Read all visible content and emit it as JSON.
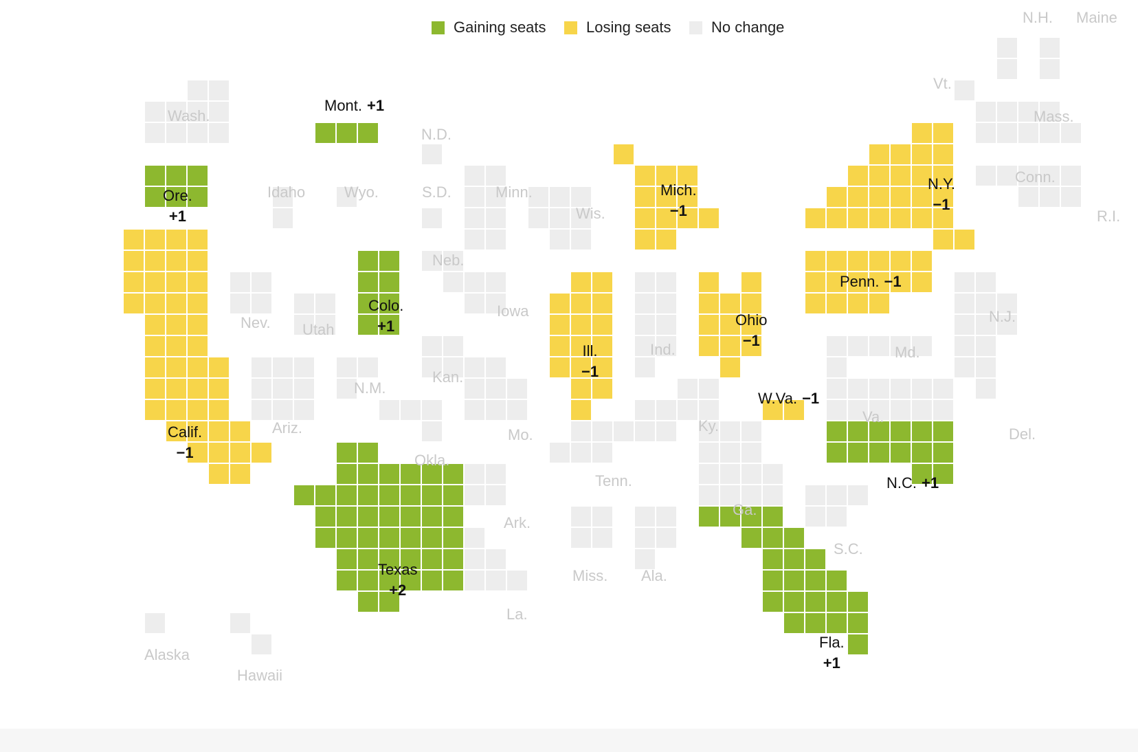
{
  "legend": [
    {
      "key": "gain",
      "label": "Gaining seats",
      "color": "#8db82f"
    },
    {
      "key": "lose",
      "label": "Losing seats",
      "color": "#f7d54a"
    },
    {
      "key": "none",
      "label": "No change",
      "color": "#ededed"
    }
  ],
  "states": [
    {
      "id": "wash",
      "name": "Wash.",
      "status": "none",
      "change": "",
      "seats": 10
    },
    {
      "id": "ore",
      "name": "Ore.",
      "status": "gain",
      "change": "+1",
      "seats": 6
    },
    {
      "id": "calif",
      "name": "Calif.",
      "status": "lose",
      "change": "−1",
      "seats": 52
    },
    {
      "id": "mont",
      "name": "Mont.",
      "status": "gain",
      "change": "+1",
      "seats": 2
    },
    {
      "id": "idaho",
      "name": "Idaho",
      "status": "none",
      "change": "",
      "seats": 2
    },
    {
      "id": "wyo",
      "name": "Wyo.",
      "status": "none",
      "change": "",
      "seats": 1
    },
    {
      "id": "nev",
      "name": "Nev.",
      "status": "none",
      "change": "",
      "seats": 4
    },
    {
      "id": "utah",
      "name": "Utah",
      "status": "none",
      "change": "",
      "seats": 4
    },
    {
      "id": "colo",
      "name": "Colo.",
      "status": "gain",
      "change": "+1",
      "seats": 8
    },
    {
      "id": "ariz",
      "name": "Ariz.",
      "status": "none",
      "change": "",
      "seats": 9
    },
    {
      "id": "nm",
      "name": "N.M.",
      "status": "none",
      "change": "",
      "seats": 3
    },
    {
      "id": "nd",
      "name": "N.D.",
      "status": "none",
      "change": "",
      "seats": 1
    },
    {
      "id": "sd",
      "name": "S.D.",
      "status": "none",
      "change": "",
      "seats": 1
    },
    {
      "id": "neb",
      "name": "Neb.",
      "status": "none",
      "change": "",
      "seats": 3
    },
    {
      "id": "kan",
      "name": "Kan.",
      "status": "none",
      "change": "",
      "seats": 4
    },
    {
      "id": "okla",
      "name": "Okla.",
      "status": "none",
      "change": "",
      "seats": 5
    },
    {
      "id": "texas",
      "name": "Texas",
      "status": "gain",
      "change": "+2",
      "seats": 38
    },
    {
      "id": "minn",
      "name": "Minn.",
      "status": "none",
      "change": "",
      "seats": 8
    },
    {
      "id": "iowa",
      "name": "Iowa",
      "status": "none",
      "change": "",
      "seats": 4
    },
    {
      "id": "mo",
      "name": "Mo.",
      "status": "none",
      "change": "",
      "seats": 8
    },
    {
      "id": "ark",
      "name": "Ark.",
      "status": "none",
      "change": "",
      "seats": 4
    },
    {
      "id": "la",
      "name": "La.",
      "status": "none",
      "change": "",
      "seats": 6
    },
    {
      "id": "wis",
      "name": "Wis.",
      "status": "none",
      "change": "",
      "seats": 8
    },
    {
      "id": "ill",
      "name": "Ill.",
      "status": "lose",
      "change": "−1",
      "seats": 17
    },
    {
      "id": "mich",
      "name": "Mich.",
      "status": "lose",
      "change": "−1",
      "seats": 13
    },
    {
      "id": "ind",
      "name": "Ind.",
      "status": "none",
      "change": "",
      "seats": 9
    },
    {
      "id": "ohio",
      "name": "Ohio",
      "status": "lose",
      "change": "−1",
      "seats": 15
    },
    {
      "id": "ky",
      "name": "Ky.",
      "status": "none",
      "change": "",
      "seats": 6
    },
    {
      "id": "tenn",
      "name": "Tenn.",
      "status": "none",
      "change": "",
      "seats": 9
    },
    {
      "id": "miss",
      "name": "Miss.",
      "status": "none",
      "change": "",
      "seats": 4
    },
    {
      "id": "ala",
      "name": "Ala.",
      "status": "none",
      "change": "",
      "seats": 7
    },
    {
      "id": "ga",
      "name": "Ga.",
      "status": "none",
      "change": "",
      "seats": 14
    },
    {
      "id": "fla",
      "name": "Fla.",
      "status": "gain",
      "change": "+1",
      "seats": 28
    },
    {
      "id": "sc",
      "name": "S.C.",
      "status": "none",
      "change": "",
      "seats": 7
    },
    {
      "id": "nc",
      "name": "N.C.",
      "status": "gain",
      "change": "+1",
      "seats": 14
    },
    {
      "id": "va",
      "name": "Va.",
      "status": "none",
      "change": "",
      "seats": 11
    },
    {
      "id": "wva",
      "name": "W.Va.",
      "status": "lose",
      "change": "−1",
      "seats": 2
    },
    {
      "id": "md",
      "name": "Md.",
      "status": "none",
      "change": "",
      "seats": 8
    },
    {
      "id": "del",
      "name": "Del.",
      "status": "none",
      "change": "",
      "seats": 1
    },
    {
      "id": "penn",
      "name": "Penn.",
      "status": "lose",
      "change": "−1",
      "seats": 17
    },
    {
      "id": "nj",
      "name": "N.J.",
      "status": "none",
      "change": "",
      "seats": 12
    },
    {
      "id": "ny",
      "name": "N.Y.",
      "status": "lose",
      "change": "−1",
      "seats": 26
    },
    {
      "id": "conn",
      "name": "Conn.",
      "status": "none",
      "change": "",
      "seats": 5
    },
    {
      "id": "ri",
      "name": "R.I.",
      "status": "none",
      "change": "",
      "seats": 2
    },
    {
      "id": "mass",
      "name": "Mass.",
      "status": "none",
      "change": "",
      "seats": 9
    },
    {
      "id": "vt",
      "name": "Vt.",
      "status": "none",
      "change": "",
      "seats": 1
    },
    {
      "id": "nh",
      "name": "N.H.",
      "status": "none",
      "change": "",
      "seats": 2
    },
    {
      "id": "maine",
      "name": "Maine",
      "status": "none",
      "change": "",
      "seats": 2
    },
    {
      "id": "alaska",
      "name": "Alaska",
      "status": "none",
      "change": "",
      "seats": 1
    },
    {
      "id": "hawaii",
      "name": "Hawaii",
      "status": "none",
      "change": "",
      "seats": 2
    }
  ]
}
